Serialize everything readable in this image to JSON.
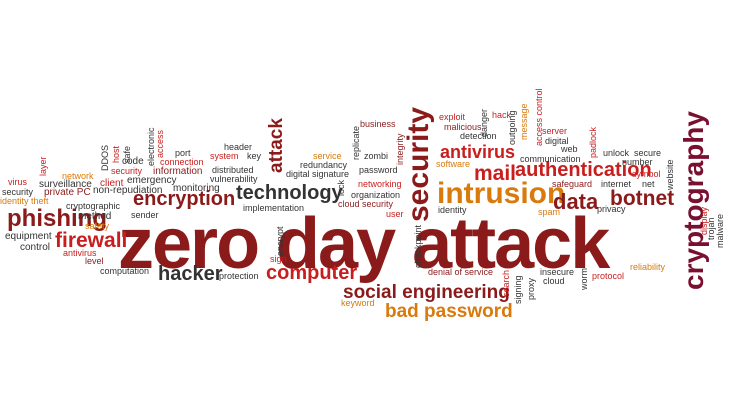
{
  "palette": {
    "dark_red": "#8b1a1a",
    "red": "#c81e1e",
    "orange": "#d87a0c",
    "dark_gray": "#333333",
    "maroon": "#7a1030"
  },
  "words": {
    "zero_day_attack": "zero day attack",
    "cryptography": "cryptography",
    "security": "security",
    "attack": "attack",
    "intrusion": "intrusion",
    "authentication": "authentication",
    "phishing": "phishing",
    "encryption": "encryption",
    "technology": "technology",
    "firewall": "firewall",
    "botnet": "botnet",
    "data": "data",
    "mail": "mail",
    "antivirus_big": "antivirus",
    "hacker": "hacker",
    "computer": "computer",
    "social_engineering": "social engineering",
    "bad_password": "bad password",
    "virus": "virus",
    "surveillance": "surveillance",
    "security_small": "security",
    "private_pc": "private PC",
    "identity_theft": "identity theft",
    "equipment": "equipment",
    "control": "control",
    "antivirus_small": "antivirus",
    "level": "level",
    "network": "network",
    "layer": "layer",
    "cryptographic": "cryptographic",
    "method": "method",
    "safety": "safety",
    "ddos": "DDOS",
    "host": "host",
    "safe": "safe",
    "electronic": "electronic",
    "access": "access",
    "code": "code",
    "security_mid": "security",
    "information": "information",
    "client": "client",
    "emergency": "emergency",
    "non_repudiation": "non-repudiation",
    "sender": "sender",
    "monitoring": "monitoring",
    "port": "port",
    "connection": "connection",
    "header": "header",
    "system": "system",
    "key": "key",
    "distributed": "distributed",
    "vulnerability": "vulnerability",
    "implementation": "implementation",
    "computation": "computation",
    "protection": "protection",
    "encrypt": "encrypt",
    "sign": "sign",
    "service": "service",
    "redundancy": "redundancy",
    "digital_signature": "digital signature",
    "replicate": "replicate",
    "zombi": "zombi",
    "password": "password",
    "lock": "lock",
    "networking": "networking",
    "organization": "organization",
    "cloud_security": "cloud security",
    "user": "user",
    "business": "business",
    "integrity": "integrity",
    "keyword": "keyword",
    "checkpoint": "checkpoint",
    "software": "software",
    "identity": "identity",
    "exploit": "exploit",
    "malicious": "malicious",
    "danger": "danger",
    "hack": "hack",
    "message": "message",
    "outgoing": "outgoing",
    "detection": "detection",
    "access_control": "access control",
    "server": "server",
    "digital": "digital",
    "web": "web",
    "communication": "communication",
    "safeguard": "safeguard",
    "spam": "spam",
    "denial_of_service": "denial of service",
    "search": "search",
    "signing": "signing",
    "proxy": "proxy",
    "insecure": "insecure",
    "cloud": "cloud",
    "worm": "worm",
    "protocol": "protocol",
    "padlock": "padlock",
    "unlock": "unlock",
    "secure": "secure",
    "number": "number",
    "symbol": "symbol",
    "internet": "internet",
    "net": "net",
    "privacy": "privacy",
    "website": "website",
    "reliability": "reliability",
    "display": "display",
    "trojan": "trojan",
    "malware": "malware"
  }
}
